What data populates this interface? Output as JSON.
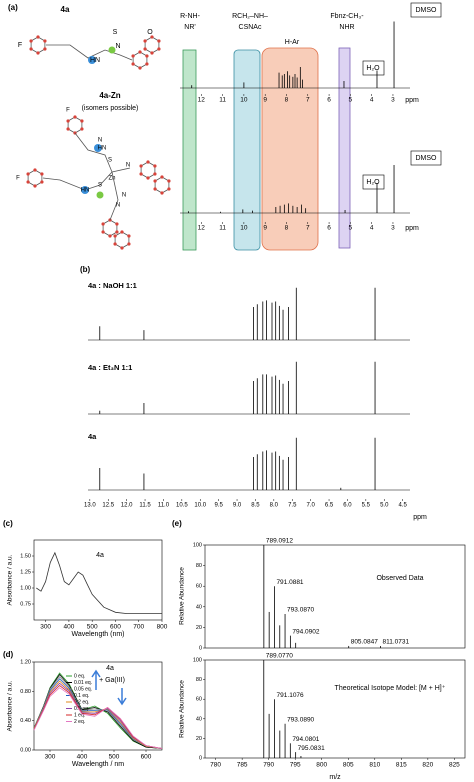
{
  "panel_labels": [
    "(a)",
    "(b)",
    "(c)",
    "(d)",
    "(e)"
  ],
  "molecules": [
    {
      "name": "4a",
      "atoms": [
        "F",
        "HN",
        "N",
        "S",
        "O"
      ]
    },
    {
      "name": "4a-Zn",
      "note": "(isomers possible)",
      "atoms": [
        "F",
        "N",
        "HN",
        "S",
        "N",
        "Zn",
        "N",
        "S",
        "N",
        "HN",
        "F"
      ]
    }
  ],
  "chart_data": [
    {
      "type": "stick",
      "annotations": [
        "R-NH-",
        "NR'",
        "RCH₂–NH–",
        "CSNAc",
        "H-Ar",
        "Fbnz-CH₃-",
        "NHR",
        "DMSO",
        "H₂O",
        "DMSO",
        "H₂O"
      ],
      "xlim": [
        13,
        2.2
      ],
      "ylim": [
        0,
        100
      ],
      "xticks": [
        12,
        11,
        10,
        9,
        8,
        7,
        6,
        5,
        4,
        3
      ],
      "x_label": "ppm",
      "series": [
        {
          "color": "#000000",
          "x": [
            12.45,
            10.0,
            8.35,
            8.2,
            8.1,
            7.95,
            7.85,
            7.7,
            7.6,
            7.5,
            7.35,
            7.25,
            5.3,
            3.75,
            2.95
          ],
          "values": [
            4,
            8,
            22,
            18,
            20,
            24,
            18,
            16,
            20,
            15,
            30,
            12,
            10,
            25,
            95
          ]
        },
        {
          "color": "#000000",
          "x": [
            12.6,
            11.1,
            10.05,
            9.6,
            8.5,
            8.3,
            8.1,
            7.9,
            7.7,
            7.5,
            7.3,
            7.1,
            5.25,
            3.75,
            2.95
          ],
          "values": [
            3,
            2,
            6,
            4,
            10,
            12,
            14,
            16,
            12,
            10,
            14,
            8,
            5,
            50,
            80
          ]
        }
      ]
    },
    {
      "type": "stick",
      "xlim": [
        13.05,
        4.3
      ],
      "ylim": [
        0,
        100
      ],
      "x_label": "ppm",
      "xticks": [
        {
          "value": 13,
          "label": "13.0"
        },
        12.5,
        {
          "value": 12,
          "label": "12.0"
        },
        11.5,
        {
          "value": 11,
          "label": "11.0"
        },
        10.5,
        {
          "value": 10,
          "label": "10.0"
        },
        9.5,
        {
          "value": 9,
          "label": "9.0"
        },
        8.5,
        {
          "value": 8,
          "label": "8.0"
        },
        7.5,
        {
          "value": 7,
          "label": "7.0"
        },
        6.5,
        {
          "value": 6,
          "label": "6.0"
        },
        5.5,
        {
          "value": 5,
          "label": "5.0"
        },
        4.5
      ],
      "series": [
        {
          "name": "4a : NaOH 1:1",
          "color": "#000000",
          "x": [
            12.73,
            11.53,
            8.55,
            8.45,
            8.3,
            8.2,
            8.05,
            7.95,
            7.85,
            7.75,
            7.6,
            7.39,
            5.25
          ],
          "values": [
            25,
            18,
            60,
            65,
            70,
            72,
            68,
            70,
            62,
            55,
            60,
            95,
            95
          ]
        },
        {
          "name": "4a : Et₃N 1:1",
          "color": "#000000",
          "x": [
            12.73,
            11.53,
            8.55,
            8.45,
            8.3,
            8.2,
            8.05,
            7.95,
            7.85,
            7.75,
            7.6,
            7.39,
            5.25
          ],
          "values": [
            6,
            20,
            60,
            65,
            72,
            72,
            68,
            70,
            62,
            55,
            60,
            95,
            95
          ]
        },
        {
          "name": "4a",
          "color": "#000000",
          "x": [
            12.73,
            11.53,
            8.55,
            8.45,
            8.3,
            8.2,
            8.05,
            7.95,
            7.85,
            7.75,
            7.6,
            7.39,
            6.18,
            5.25
          ],
          "values": [
            40,
            30,
            60,
            65,
            70,
            72,
            68,
            70,
            62,
            55,
            60,
            95,
            4,
            95
          ]
        }
      ]
    },
    {
      "type": "line",
      "annotations": [
        "4a"
      ],
      "x_label": "Wavelength (nm)",
      "y_label": "Absorbance / a.u.",
      "xlim": [
        250,
        800
      ],
      "xticks": [
        300,
        400,
        500,
        600,
        700,
        800
      ],
      "ylim": [
        0.5,
        1.75
      ],
      "yticks": [
        {
          "value": 0.75,
          "label": "0.75"
        },
        {
          "value": 1,
          "label": "1.00"
        },
        {
          "value": 1.25,
          "label": "1.25"
        },
        {
          "value": 1.5,
          "label": "1.50"
        }
      ],
      "x": [
        260,
        280,
        300,
        320,
        340,
        360,
        380,
        400,
        420,
        440,
        460,
        480,
        500,
        550,
        600,
        650,
        700,
        800
      ],
      "series": [
        {
          "color": "#333333",
          "values": [
            1.0,
            0.95,
            1.1,
            1.4,
            1.55,
            1.35,
            1.1,
            1.05,
            1.15,
            1.25,
            1.2,
            1.05,
            0.9,
            0.7,
            0.62,
            0.6,
            0.6,
            0.6
          ]
        }
      ]
    },
    {
      "type": "line",
      "annotations": [
        "4a",
        "+ Ga(III)"
      ],
      "x_label": "Wavelength / nm",
      "y_label": "Absorbance / a.u.",
      "xlim": [
        250,
        650
      ],
      "xticks": [
        300,
        400,
        500,
        600
      ],
      "ylim": [
        0,
        1.2
      ],
      "yticks": [
        {
          "value": 0,
          "label": "0.00"
        },
        {
          "value": 0.4,
          "label": "0.40"
        },
        {
          "value": 0.8,
          "label": "0.80"
        },
        {
          "value": 1.2,
          "label": "1.20"
        }
      ],
      "x": [
        250,
        280,
        300,
        330,
        360,
        400,
        440,
        480,
        520,
        560,
        600,
        650
      ],
      "series": [
        {
          "name": "0 eq.",
          "color": "#2ca02c",
          "values": [
            0.3,
            0.6,
            0.85,
            1.05,
            0.9,
            0.55,
            0.6,
            0.5,
            0.3,
            0.12,
            0.04,
            0.02
          ]
        },
        {
          "name": "0.01 eq.",
          "color": "#000000",
          "values": [
            0.3,
            0.6,
            0.84,
            1.03,
            0.88,
            0.55,
            0.58,
            0.52,
            0.32,
            0.13,
            0.04,
            0.02
          ]
        },
        {
          "name": "0.05 eq.",
          "color": "#888888",
          "values": [
            0.3,
            0.59,
            0.83,
            1.0,
            0.86,
            0.54,
            0.56,
            0.54,
            0.34,
            0.14,
            0.05,
            0.02
          ]
        },
        {
          "name": "0.1 eq.",
          "color": "#1f5fbf",
          "values": [
            0.29,
            0.58,
            0.81,
            0.97,
            0.84,
            0.53,
            0.54,
            0.55,
            0.36,
            0.15,
            0.05,
            0.02
          ]
        },
        {
          "name": "0.2 eq.",
          "color": "#e08a1e",
          "values": [
            0.29,
            0.57,
            0.79,
            0.94,
            0.82,
            0.52,
            0.52,
            0.56,
            0.38,
            0.16,
            0.05,
            0.02
          ]
        },
        {
          "name": "0.5 eq.",
          "color": "#8e44ad",
          "values": [
            0.28,
            0.56,
            0.77,
            0.91,
            0.8,
            0.51,
            0.5,
            0.57,
            0.4,
            0.17,
            0.06,
            0.02
          ]
        },
        {
          "name": "1 eq.",
          "color": "#d62728",
          "values": [
            0.28,
            0.55,
            0.75,
            0.88,
            0.78,
            0.5,
            0.48,
            0.58,
            0.42,
            0.18,
            0.06,
            0.02
          ]
        },
        {
          "name": "2 eq.",
          "color": "#e377c2",
          "values": [
            0.27,
            0.54,
            0.73,
            0.85,
            0.76,
            0.49,
            0.46,
            0.58,
            0.43,
            0.19,
            0.06,
            0.02
          ]
        }
      ]
    },
    {
      "type": "stick",
      "annotations": [
        "Observed Data"
      ],
      "y_label": "Relative Abundance",
      "xlim": [
        778,
        827
      ],
      "ylim": [
        0,
        100
      ],
      "yticks": [
        0,
        20,
        40,
        60,
        80,
        100
      ],
      "color": "#000000",
      "x": [
        789.0912,
        790.0935,
        791.0881,
        792.0905,
        793.087,
        794.0902,
        795.09,
        805.0847,
        811.0731
      ],
      "values": [
        100,
        35,
        60,
        22,
        33,
        12,
        5,
        2,
        2
      ],
      "peak_labels": [
        "789.0912",
        null,
        "791.0881",
        null,
        "793.0870",
        "794.0902",
        null,
        "805.0847",
        "811.0731"
      ]
    },
    {
      "type": "stick",
      "annotations": [
        "Theoretical Isotope Model: [M + H]⁺"
      ],
      "y_label": "Relative Abundance",
      "x_label": "m/z",
      "xlim": [
        778,
        827
      ],
      "ylim": [
        0,
        100
      ],
      "yticks": [
        0,
        20,
        40,
        60,
        80,
        100
      ],
      "color": "#000000",
      "xticks": [
        780,
        785,
        790,
        795,
        800,
        805,
        810,
        815,
        820,
        825
      ],
      "x": [
        789.077,
        790.08,
        791.1076,
        792.1,
        793.089,
        794.0801,
        795.0831,
        796.08
      ],
      "values": [
        100,
        45,
        60,
        28,
        35,
        15,
        6,
        2
      ],
      "peak_labels": [
        "789.0770",
        null,
        "791.1076",
        null,
        "793.0890",
        "794.0801",
        "795.0831",
        null
      ]
    }
  ]
}
